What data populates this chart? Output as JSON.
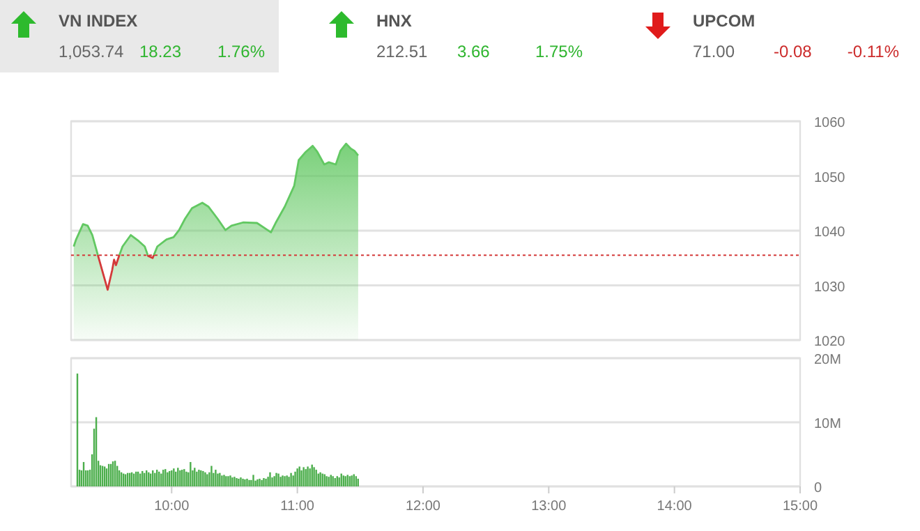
{
  "chart_data": [
    {
      "type": "other",
      "annotations": [
        "VN INDEX",
        "1,053.74",
        "18.23",
        "1.76%",
        "HNX",
        "212.51",
        "3.66",
        "1.75%",
        "UPCOM",
        "71.00",
        "-0.08",
        "-0.11%"
      ]
    },
    {
      "type": "area",
      "xlim": [
        9.2,
        15
      ],
      "ylim": [
        1020,
        1060
      ],
      "yticks": [
        1020,
        1030,
        1040,
        1050,
        1060
      ],
      "grid": "y",
      "tick_labels": "y",
      "ref_lines": [
        {
          "axis": "y",
          "value": 1035.51,
          "color": "#d43a3a",
          "line_style": "dotted"
        }
      ],
      "series": [
        {
          "color": "#62c862",
          "x": [
            9.221,
            9.24,
            9.295,
            9.332,
            9.369,
            9.417,
            9.491,
            9.527,
            9.542,
            9.557,
            9.579,
            9.609,
            9.675,
            9.738,
            9.786,
            9.812,
            9.849,
            9.886,
            9.959,
            10.015,
            10.059,
            10.107,
            10.162,
            10.244,
            10.292,
            10.365,
            10.428,
            10.476,
            10.568,
            10.679,
            10.79,
            10.827,
            10.9,
            10.975,
            11.011,
            11.067,
            11.122,
            11.159,
            11.214,
            11.251,
            11.306,
            11.343,
            11.388,
            11.425,
            11.454,
            11.484
          ],
          "values": [
            1037.1,
            1038.4,
            1041.2,
            1040.9,
            1039.2,
            1035.2,
            1029.2,
            1032.8,
            1034.7,
            1033.7,
            1035.2,
            1037.1,
            1039.2,
            1038.1,
            1037.1,
            1035.4,
            1035.0,
            1037.1,
            1038.4,
            1038.8,
            1040.1,
            1042.2,
            1044.1,
            1045.1,
            1044.4,
            1042.2,
            1040.1,
            1040.9,
            1041.5,
            1041.4,
            1039.7,
            1041.4,
            1044.4,
            1048.2,
            1052.9,
            1054.4,
            1055.5,
            1054.4,
            1052.1,
            1052.5,
            1052.1,
            1054.6,
            1055.9,
            1055.0,
            1054.6,
            1053.74
          ]
        }
      ]
    },
    {
      "type": "bar",
      "xlim": [
        9.2,
        15
      ],
      "xticks": [
        {
          "value": 10,
          "label": "10:00"
        },
        {
          "value": 11,
          "label": "11:00"
        },
        {
          "value": 12,
          "label": "12:00"
        },
        {
          "value": 13,
          "label": "13:00"
        },
        {
          "value": 14,
          "label": "14:00"
        },
        {
          "value": 15,
          "label": "15:00"
        }
      ],
      "ylim": [
        0,
        20
      ],
      "yticks": [
        0,
        {
          "value": 10,
          "label": "10M"
        },
        {
          "value": 20,
          "label": "20M"
        }
      ],
      "grid": "y",
      "series": [
        {
          "color": "#4cae4c",
          "x": [
            9.25,
            9.267,
            9.283,
            9.3,
            9.317,
            9.333,
            9.35,
            9.367,
            9.383,
            9.4,
            9.417,
            9.433,
            9.45,
            9.467,
            9.483,
            9.5,
            9.517,
            9.533,
            9.55,
            9.567,
            9.583,
            9.6,
            9.617,
            9.633,
            9.65,
            9.667,
            9.683,
            9.7,
            9.717,
            9.733,
            9.75,
            9.767,
            9.783,
            9.8,
            9.817,
            9.833,
            9.85,
            9.867,
            9.883,
            9.9,
            9.917,
            9.933,
            9.95,
            9.967,
            9.983,
            10,
            10.017,
            10.033,
            10.05,
            10.067,
            10.083,
            10.1,
            10.117,
            10.133,
            10.15,
            10.167,
            10.183,
            10.2,
            10.217,
            10.233,
            10.25,
            10.267,
            10.283,
            10.3,
            10.317,
            10.333,
            10.35,
            10.367,
            10.383,
            10.4,
            10.417,
            10.433,
            10.45,
            10.467,
            10.483,
            10.5,
            10.517,
            10.533,
            10.55,
            10.567,
            10.583,
            10.6,
            10.617,
            10.633,
            10.65,
            10.667,
            10.683,
            10.7,
            10.717,
            10.733,
            10.75,
            10.767,
            10.783,
            10.8,
            10.817,
            10.833,
            10.85,
            10.867,
            10.883,
            10.9,
            10.917,
            10.933,
            10.95,
            10.967,
            10.983,
            11,
            11.017,
            11.033,
            11.05,
            11.067,
            11.083,
            11.1,
            11.117,
            11.133,
            11.15,
            11.167,
            11.183,
            11.2,
            11.217,
            11.233,
            11.25,
            11.267,
            11.283,
            11.3,
            11.317,
            11.333,
            11.35,
            11.367,
            11.383,
            11.4,
            11.417,
            11.433,
            11.45,
            11.467,
            11.483
          ],
          "values": [
            17.6,
            2.6,
            2.5,
            3.8,
            2.5,
            2.5,
            2.6,
            5,
            9,
            10.8,
            4,
            3.3,
            3.2,
            3.1,
            2.8,
            3.5,
            3.5,
            3.9,
            4,
            3.2,
            2.5,
            2.2,
            2,
            1.9,
            2.1,
            2.1,
            2.2,
            2,
            2.3,
            2.3,
            2,
            2.4,
            2.1,
            2.5,
            2.2,
            2,
            2.5,
            2.1,
            2.6,
            2.3,
            2,
            2.6,
            2.7,
            2.2,
            2.4,
            2.5,
            2.8,
            2.3,
            2.9,
            2.5,
            2.6,
            2.7,
            2.3,
            2.2,
            3.8,
            2.5,
            2.9,
            2.3,
            2.6,
            2.5,
            2.4,
            2.2,
            1.9,
            2.2,
            3.2,
            2.1,
            2.6,
            2,
            2.1,
            1.7,
            1.8,
            1.6,
            1.6,
            1.7,
            1.4,
            1.5,
            1.3,
            1.2,
            1.4,
            1.2,
            1.1,
            1.2,
            1,
            1,
            1.8,
            0.9,
            1.1,
            1.2,
            1,
            1.3,
            1.2,
            1.5,
            2.2,
            1.4,
            1.6,
            2.1,
            2,
            1.5,
            1.7,
            1.6,
            1.7,
            1.5,
            2.1,
            1.7,
            2.3,
            2.8,
            3.1,
            2.5,
            3,
            2.7,
            3.1,
            2.8,
            3.4,
            3,
            2.6,
            2,
            2.2,
            2,
            1.9,
            1.6,
            1.5,
            1.8,
            1.6,
            1.3,
            1.6,
            1.4,
            2,
            1.7,
            1.6,
            1.8,
            1.6,
            1.7,
            1.9,
            1.6,
            1.2
          ]
        }
      ]
    }
  ]
}
